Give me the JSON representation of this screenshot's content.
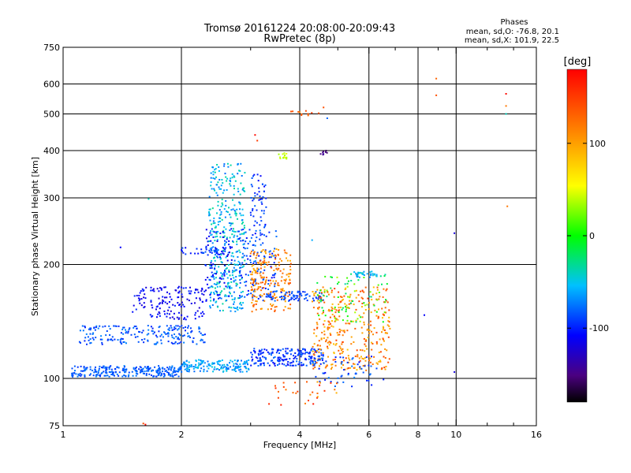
{
  "chart_data": {
    "type": "scatter",
    "title": "Tromsø 20161224 20:08:00-20:09:43",
    "subtitle": "RwPretec (8p)",
    "xlabel": "Frequency [MHz]",
    "ylabel": "Stationary phase Virtual Height [km]",
    "x_scale": "log",
    "y_scale": "log",
    "xlim": [
      1,
      16
    ],
    "ylim": [
      75,
      750
    ],
    "x_ticks": [
      {
        "value": 1,
        "label": "1"
      },
      {
        "value": 2,
        "label": "2"
      },
      {
        "value": 4,
        "label": "4"
      },
      {
        "value": 6,
        "label": "6"
      },
      {
        "value": 8,
        "label": "8"
      },
      {
        "value": 10,
        "label": "10"
      },
      {
        "value": 16,
        "label": "16"
      }
    ],
    "x_gridlines": [
      2,
      4,
      6,
      8,
      10
    ],
    "x_minor_ticks": [
      3,
      5,
      7,
      9,
      12,
      14
    ],
    "y_ticks": [
      {
        "value": 75,
        "label": "75"
      },
      {
        "value": 100,
        "label": "100"
      },
      {
        "value": 200,
        "label": "200"
      },
      {
        "value": 300,
        "label": "300"
      },
      {
        "value": 400,
        "label": "400"
      },
      {
        "value": 500,
        "label": "500"
      },
      {
        "value": 600,
        "label": "600"
      },
      {
        "value": 750,
        "label": "750"
      }
    ],
    "y_gridlines": [
      100,
      200,
      300,
      400,
      500,
      600
    ],
    "grid": true,
    "stats": {
      "heading": "Phases",
      "line_o": "mean, sd,O: -76.8, 20.1",
      "line_x": "mean, sd,X: 101.9, 22.5"
    },
    "colorbar": {
      "label": "[deg]",
      "range": [
        -180,
        180
      ],
      "ticks": [
        {
          "value": 100,
          "label": "100"
        },
        {
          "value": 0,
          "label": "0"
        },
        {
          "value": -100,
          "label": "-100"
        }
      ]
    },
    "clusters": [
      {
        "f": [
          1.05,
          2.0
        ],
        "h": [
          101,
          108
        ],
        "phase": [
          -95,
          -70
        ],
        "n": 260
      },
      {
        "f": [
          2.0,
          3.0
        ],
        "h": [
          104,
          112
        ],
        "phase": [
          -80,
          -45
        ],
        "n": 160
      },
      {
        "f": [
          3.0,
          4.6
        ],
        "h": [
          108,
          120
        ],
        "phase": [
          -110,
          -75
        ],
        "n": 210
      },
      {
        "f": [
          1.1,
          2.3
        ],
        "h": [
          123,
          138
        ],
        "phase": [
          -100,
          -70
        ],
        "n": 200
      },
      {
        "f": [
          1.5,
          2.3
        ],
        "h": [
          143,
          175
        ],
        "phase": [
          -125,
          -95
        ],
        "n": 150
      },
      {
        "f": [
          2.0,
          2.6
        ],
        "h": [
          212,
          222
        ],
        "phase": [
          -110,
          -80
        ],
        "n": 40
      },
      {
        "f": [
          2.35,
          2.9
        ],
        "h": [
          150,
          370
        ],
        "phase": [
          -80,
          -30
        ],
        "n": 380
      },
      {
        "f": [
          2.3,
          2.7
        ],
        "h": [
          160,
          250
        ],
        "phase": [
          -120,
          -90
        ],
        "n": 80
      },
      {
        "f": [
          2.8,
          3.5
        ],
        "h": [
          160,
          250
        ],
        "phase": [
          -110,
          -70
        ],
        "n": 140
      },
      {
        "f": [
          3.0,
          3.3
        ],
        "h": [
          250,
          350
        ],
        "phase": [
          -110,
          -80
        ],
        "n": 50
      },
      {
        "f": [
          3.0,
          3.8
        ],
        "h": [
          150,
          220
        ],
        "phase": [
          90,
          140
        ],
        "n": 200
      },
      {
        "f": [
          3.3,
          4.6
        ],
        "h": [
          160,
          170
        ],
        "phase": [
          -100,
          -80
        ],
        "n": 70
      },
      {
        "f": [
          4.3,
          6.8
        ],
        "h": [
          105,
          175
        ],
        "phase": [
          80,
          150
        ],
        "n": 360
      },
      {
        "f": [
          4.4,
          6.7
        ],
        "h": [
          140,
          190
        ],
        "phase": [
          -40,
          40
        ],
        "n": 80
      },
      {
        "f": [
          5.5,
          6.3
        ],
        "h": [
          185,
          192
        ],
        "phase": [
          -70,
          -40
        ],
        "n": 30
      },
      {
        "f": [
          4.2,
          6.6
        ],
        "h": [
          95,
          115
        ],
        "phase": [
          -110,
          -70
        ],
        "n": 60
      },
      {
        "f": [
          3.3,
          5.0
        ],
        "h": [
          85,
          98
        ],
        "phase": [
          90,
          170
        ],
        "n": 30
      },
      {
        "f": [
          3.5,
          3.8
        ],
        "h": [
          380,
          395
        ],
        "phase": [
          30,
          50
        ],
        "n": 12
      },
      {
        "f": [
          3.8,
          4.6
        ],
        "h": [
          495,
          510
        ],
        "phase": [
          110,
          150
        ],
        "n": 10
      },
      {
        "f": [
          4.5,
          4.7
        ],
        "h": [
          390,
          400
        ],
        "phase": [
          -170,
          -140
        ],
        "n": 8
      }
    ],
    "sparse_points": [
      {
        "f": 3.08,
        "h": 440,
        "phase": 175
      },
      {
        "f": 3.12,
        "h": 425,
        "phase": 150
      },
      {
        "f": 4.2,
        "h": 500,
        "phase": 140
      },
      {
        "f": 4.6,
        "h": 520,
        "phase": 140
      },
      {
        "f": 4.7,
        "h": 487,
        "phase": -80
      },
      {
        "f": 8.9,
        "h": 620,
        "phase": 130
      },
      {
        "f": 8.9,
        "h": 560,
        "phase": 140
      },
      {
        "f": 13.4,
        "h": 565,
        "phase": 175
      },
      {
        "f": 13.4,
        "h": 500,
        "phase": -40
      },
      {
        "f": 13.4,
        "h": 525,
        "phase": 120
      },
      {
        "f": 13.5,
        "h": 285,
        "phase": 120
      },
      {
        "f": 9.9,
        "h": 242,
        "phase": -120
      },
      {
        "f": 9.9,
        "h": 104,
        "phase": -120
      },
      {
        "f": 8.3,
        "h": 147,
        "phase": -110
      },
      {
        "f": 1.6,
        "h": 76,
        "phase": 140
      },
      {
        "f": 1.62,
        "h": 75.5,
        "phase": 175
      },
      {
        "f": 1.65,
        "h": 298,
        "phase": -40
      },
      {
        "f": 1.4,
        "h": 222,
        "phase": -110
      },
      {
        "f": 4.3,
        "h": 232,
        "phase": -60
      }
    ]
  }
}
